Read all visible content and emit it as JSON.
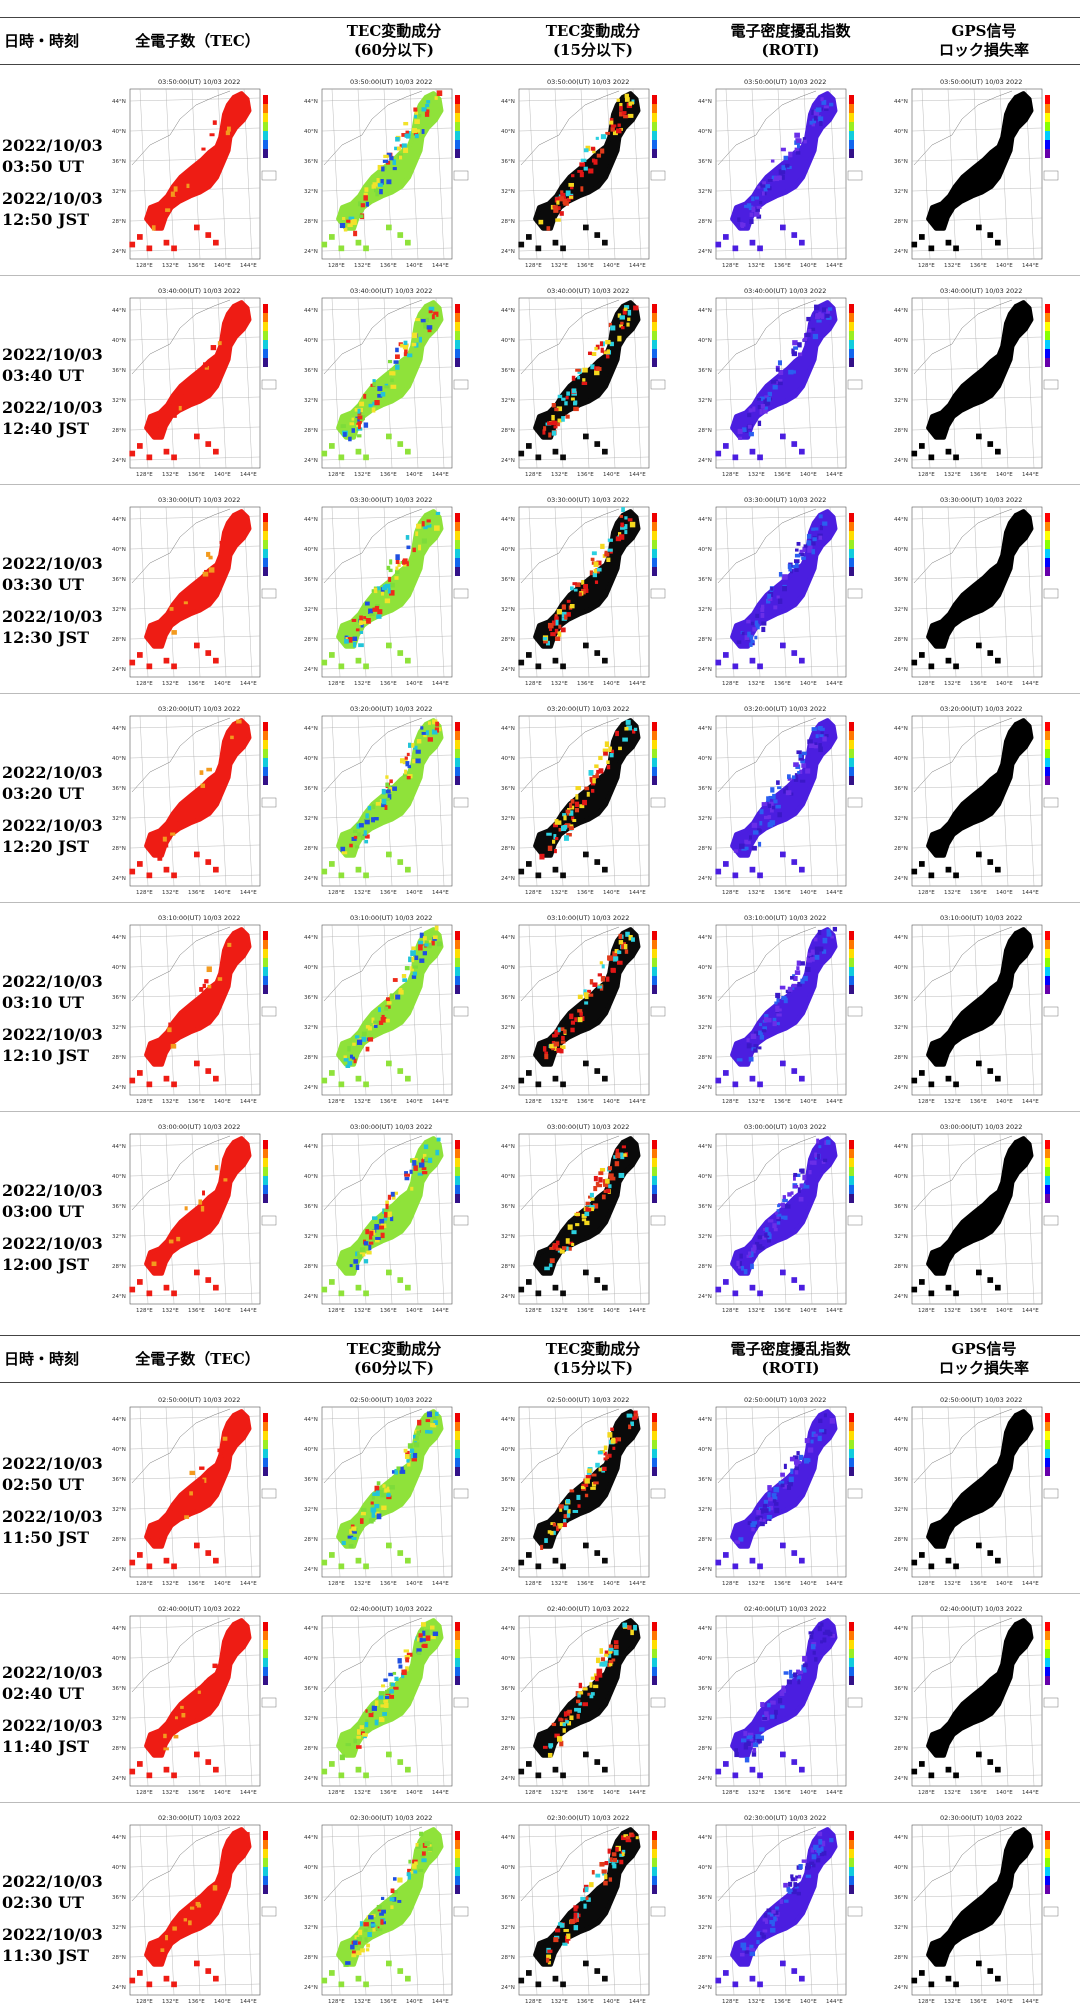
{
  "headers": {
    "col0": "日時・時刻",
    "col1": "全電子数（TEC）",
    "col2": [
      "TEC変動成分",
      "(60分以下)"
    ],
    "col3": [
      "TEC変動成分",
      "(15分以下)"
    ],
    "col4": [
      "電子密度擾乱指数",
      "(ROTI)"
    ],
    "col5": [
      "GPS信号",
      "ロック損失率"
    ]
  },
  "groups": [
    {
      "rows": [
        {
          "date_ut": "2022/10/03",
          "ut": "03:50 UT",
          "date_jst": "2022/10/03",
          "jst": "12:50 JST",
          "map_title": "03:50:00(UT) 10/03 2022"
        },
        {
          "date_ut": "2022/10/03",
          "ut": "03:40 UT",
          "date_jst": "2022/10/03",
          "jst": "12:40 JST",
          "map_title": "03:40:00(UT) 10/03 2022"
        },
        {
          "date_ut": "2022/10/03",
          "ut": "03:30 UT",
          "date_jst": "2022/10/03",
          "jst": "12:30 JST",
          "map_title": "03:30:00(UT) 10/03 2022"
        },
        {
          "date_ut": "2022/10/03",
          "ut": "03:20 UT",
          "date_jst": "2022/10/03",
          "jst": "12:20 JST",
          "map_title": "03:20:00(UT) 10/03 2022"
        },
        {
          "date_ut": "2022/10/03",
          "ut": "03:10 UT",
          "date_jst": "2022/10/03",
          "jst": "12:10 JST",
          "map_title": "03:10:00(UT) 10/03 2022"
        },
        {
          "date_ut": "2022/10/03",
          "ut": "03:00 UT",
          "date_jst": "2022/10/03",
          "jst": "12:00 JST",
          "map_title": "03:00:00(UT) 10/03 2022"
        }
      ]
    },
    {
      "rows": [
        {
          "date_ut": "2022/10/03",
          "ut": "02:50 UT",
          "date_jst": "2022/10/03",
          "jst": "11:50 JST",
          "map_title": "02:50:00(UT) 10/03 2022"
        },
        {
          "date_ut": "2022/10/03",
          "ut": "02:40 UT",
          "date_jst": "2022/10/03",
          "jst": "11:40 JST",
          "map_title": "02:40:00(UT) 10/03 2022"
        },
        {
          "date_ut": "2022/10/03",
          "ut": "02:30 UT",
          "date_jst": "2022/10/03",
          "jst": "11:30 JST",
          "map_title": "02:30:00(UT) 10/03 2022"
        }
      ]
    }
  ],
  "map_axes": {
    "lat_ticks": [
      "44°N",
      "40°N",
      "36°N",
      "32°N",
      "28°N",
      "24°N"
    ],
    "lon_ticks": [
      "128°E",
      "132°E",
      "136°E",
      "140°E",
      "144°E"
    ]
  },
  "map_colors": {
    "tec": "#ee1c14",
    "tec_orange": "#f39a1e",
    "tec60_base": "#8fe23a",
    "tec15_base": "#0a0a0a",
    "tec15_red": "#e21616",
    "roti": "#4b1ee0",
    "lock": "#000000"
  }
}
